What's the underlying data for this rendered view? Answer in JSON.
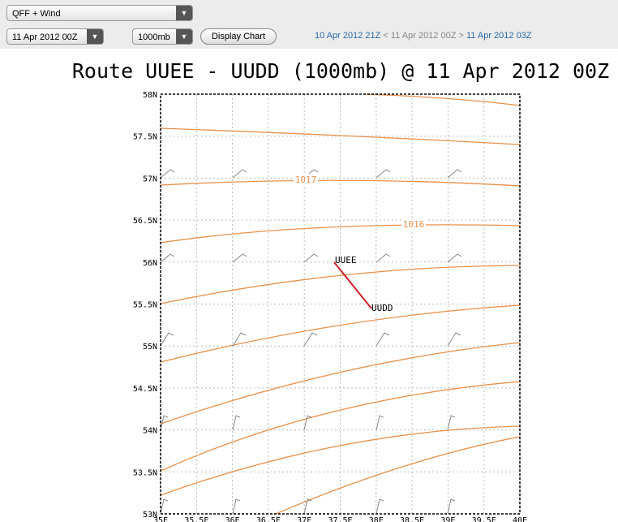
{
  "controls": {
    "product": "QFF + Wind",
    "date": "11 Apr 2012 00Z",
    "level": "1000mb",
    "button": "Display Chart"
  },
  "nav": {
    "prev": "10 Apr 2012 21Z",
    "sep_prev": "<",
    "current": "11 Apr 2012 00Z",
    "sep_next": ">",
    "next": "11 Apr 2012 03Z"
  },
  "map": {
    "title": "Route UUEE - UUDD (1000mb) @ 11 Apr 2012 00Z",
    "y_labels": [
      "58N",
      "57.5N",
      "57N",
      "56.5N",
      "56N",
      "55.5N",
      "55N",
      "54.5N",
      "54N",
      "53.5N",
      "53N"
    ],
    "x_labels": [
      "35E",
      "35.5E",
      "36E",
      "36.5E",
      "37E",
      "37.5E",
      "38E",
      "38.5E",
      "39E",
      "39.5E",
      "40E"
    ],
    "isobar_labels": [
      "1017",
      "1016"
    ],
    "stations": [
      "UUEE",
      "UUDD"
    ]
  }
}
